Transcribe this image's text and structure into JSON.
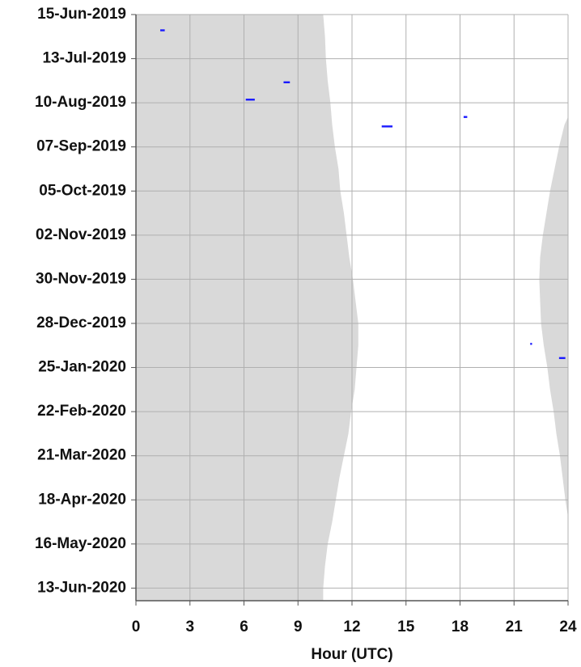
{
  "chart_data": {
    "type": "timeline",
    "xlabel": "Hour (UTC)",
    "xlim": [
      0,
      24
    ],
    "xticks": [
      0,
      3,
      6,
      9,
      12,
      15,
      18,
      21,
      24
    ],
    "ylim": [
      "2019-06-15",
      "2020-06-21"
    ],
    "yticks": [
      {
        "value": "2019-06-15",
        "label": "15-Jun-2019"
      },
      {
        "value": "2019-07-13",
        "label": "13-Jul-2019"
      },
      {
        "value": "2019-08-10",
        "label": "10-Aug-2019"
      },
      {
        "value": "2019-09-07",
        "label": "07-Sep-2019"
      },
      {
        "value": "2019-10-05",
        "label": "05-Oct-2019"
      },
      {
        "value": "2019-11-02",
        "label": "02-Nov-2019"
      },
      {
        "value": "2019-11-30",
        "label": "30-Nov-2019"
      },
      {
        "value": "2019-12-28",
        "label": "28-Dec-2019"
      },
      {
        "value": "2020-01-25",
        "label": "25-Jan-2020"
      },
      {
        "value": "2020-02-22",
        "label": "22-Feb-2020"
      },
      {
        "value": "2020-03-21",
        "label": "21-Mar-2020"
      },
      {
        "value": "2020-04-18",
        "label": "18-Apr-2020"
      },
      {
        "value": "2020-05-16",
        "label": "16-May-2020"
      },
      {
        "value": "2020-06-13",
        "label": "13-Jun-2020"
      }
    ],
    "grid": true,
    "shading_color": "#d9d9d9",
    "shading": {
      "left": {
        "dates": [
          "2019-06-15",
          "2019-06-29",
          "2019-07-13",
          "2019-07-27",
          "2019-08-10",
          "2019-08-24",
          "2019-09-07",
          "2019-09-21",
          "2019-10-05",
          "2019-10-19",
          "2019-11-02",
          "2019-11-16",
          "2019-11-30",
          "2019-12-14",
          "2019-12-28",
          "2020-01-11",
          "2020-01-25",
          "2020-02-08",
          "2020-02-22",
          "2020-03-07",
          "2020-03-21",
          "2020-04-04",
          "2020-04-18",
          "2020-05-02",
          "2020-05-16",
          "2020-05-30",
          "2020-06-13",
          "2020-06-21"
        ],
        "hours": [
          10.4,
          10.5,
          10.55,
          10.65,
          10.8,
          10.9,
          11.05,
          11.25,
          11.35,
          11.55,
          11.7,
          11.85,
          12.05,
          12.2,
          12.35,
          12.35,
          12.25,
          12.15,
          11.95,
          11.8,
          11.55,
          11.3,
          11.1,
          10.9,
          10.65,
          10.5,
          10.4,
          10.4
        ]
      },
      "right": {
        "dates": [
          "2019-08-19",
          "2019-08-24",
          "2019-09-07",
          "2019-09-21",
          "2019-10-05",
          "2019-10-19",
          "2019-11-02",
          "2019-11-16",
          "2019-11-30",
          "2019-12-14",
          "2019-12-28",
          "2020-01-11",
          "2020-01-25",
          "2020-02-08",
          "2020-02-22",
          "2020-03-07",
          "2020-03-21",
          "2020-04-04",
          "2020-04-18",
          "2020-04-29"
        ],
        "hours": [
          24,
          23.8,
          23.5,
          23.25,
          23.0,
          22.8,
          22.6,
          22.45,
          22.4,
          22.45,
          22.5,
          22.65,
          22.85,
          23.0,
          23.2,
          23.35,
          23.55,
          23.7,
          23.85,
          24
        ]
      }
    },
    "events": {
      "color": "#1a1aff",
      "dates": [
        "2019-06-25",
        "2019-07-28",
        "2019-08-08",
        "2019-08-19",
        "2019-08-25",
        "2020-01-10",
        "2020-01-19"
      ],
      "starts": [
        1.35,
        8.2,
        6.1,
        18.2,
        13.65,
        21.9,
        23.5
      ],
      "ends": [
        1.6,
        8.55,
        6.6,
        18.4,
        14.25,
        22.0,
        23.85
      ]
    }
  }
}
